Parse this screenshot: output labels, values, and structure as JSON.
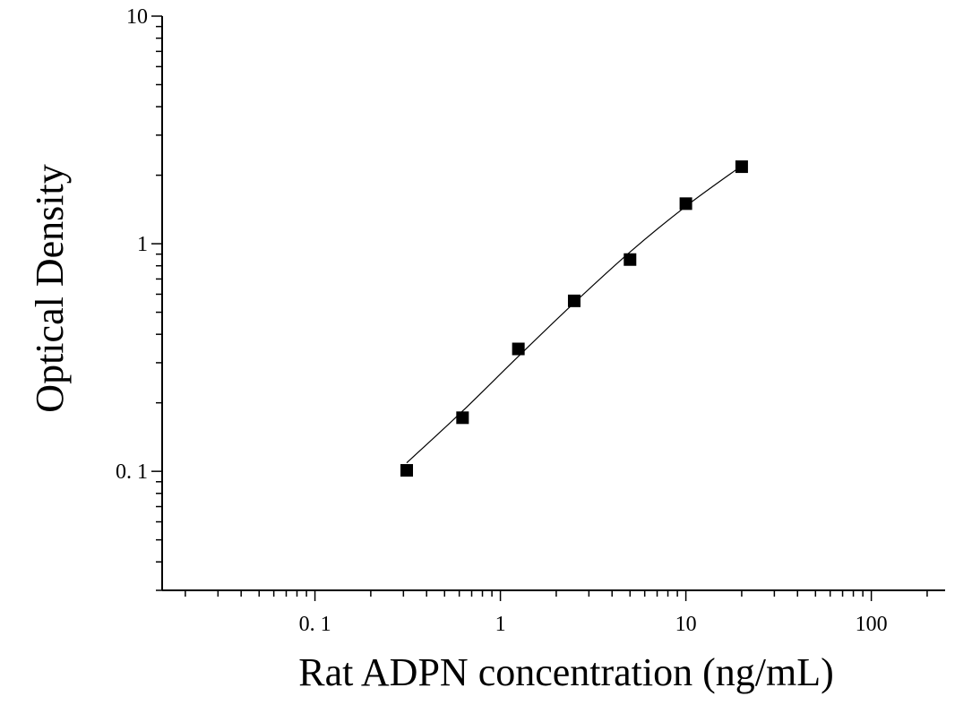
{
  "chart_data": {
    "type": "scatter",
    "title": "",
    "xlabel": "Rat ADPN concentration (ng/mL)",
    "ylabel": "Optical Density",
    "xscale": "log",
    "yscale": "log",
    "xlim": [
      0.015,
      250
    ],
    "ylim": [
      0.03,
      10
    ],
    "x_ticks": [
      {
        "value": 0.1,
        "label": "0. 1"
      },
      {
        "value": 1,
        "label": "1"
      },
      {
        "value": 10,
        "label": "10"
      },
      {
        "value": 100,
        "label": "100"
      }
    ],
    "y_ticks": [
      {
        "value": 0.1,
        "label": "0. 1"
      },
      {
        "value": 1,
        "label": "1"
      },
      {
        "value": 10,
        "label": "10"
      }
    ],
    "grid": false,
    "legend": "none",
    "series": [
      {
        "marker": "square",
        "color": "#000000",
        "points": [
          {
            "x": 0.3125,
            "y": 0.101
          },
          {
            "x": 0.625,
            "y": 0.172
          },
          {
            "x": 1.25,
            "y": 0.345
          },
          {
            "x": 2.5,
            "y": 0.561
          },
          {
            "x": 5,
            "y": 0.852
          },
          {
            "x": 10,
            "y": 1.5
          },
          {
            "x": 20,
            "y": 2.18
          }
        ]
      }
    ],
    "fit_curve": {
      "color": "#000000",
      "points": [
        {
          "x": 0.3125,
          "y": 0.109
        },
        {
          "x": 0.625,
          "y": 0.184
        },
        {
          "x": 1.25,
          "y": 0.32
        },
        {
          "x": 2.5,
          "y": 0.55
        },
        {
          "x": 5,
          "y": 0.92
        },
        {
          "x": 10,
          "y": 1.46
        },
        {
          "x": 20,
          "y": 2.2
        }
      ]
    }
  }
}
